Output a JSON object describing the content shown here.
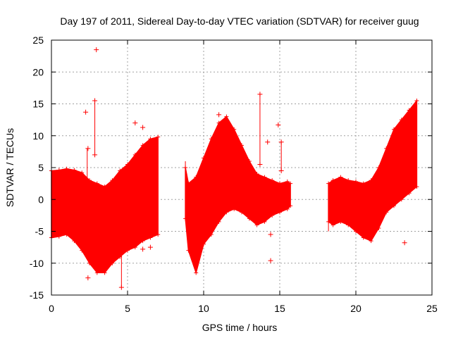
{
  "chart_data": {
    "type": "scatter",
    "title": "Day 197 of 2011, Sidereal Day-to-day VTEC variation (SDTVAR) for receiver guug",
    "xlabel": "GPS time / hours",
    "ylabel": "SDTVAR / TECUs",
    "xlim": [
      0,
      25
    ],
    "ylim": [
      -15,
      25
    ],
    "x_ticks": [
      0,
      5,
      10,
      15,
      20,
      25
    ],
    "x_tick_labels": [
      "0",
      "5",
      "10",
      "15",
      "20",
      "25"
    ],
    "y_ticks": [
      -15,
      -10,
      -5,
      0,
      5,
      10,
      15,
      20,
      25
    ],
    "y_tick_labels": [
      "-15",
      "-10",
      "-5",
      "0",
      "5",
      "10",
      "15",
      "20",
      "25"
    ],
    "grid": true,
    "series": [
      {
        "name": "SDTVAR",
        "color": "#ff0000",
        "marker": "plus",
        "segments": [
          {
            "x": [
              0.0,
              0.5,
              1.0,
              1.5,
              2.0,
              2.5,
              3.0,
              3.5,
              4.0,
              4.5,
              5.0,
              5.5,
              6.0,
              6.5,
              7.0
            ],
            "upper": [
              4.5,
              4.6,
              4.8,
              4.6,
              4.2,
              3.0,
              2.5,
              2.0,
              3.0,
              4.5,
              5.5,
              7.0,
              8.5,
              9.5,
              9.8
            ],
            "lower": [
              -6.0,
              -5.8,
              -5.5,
              -6.5,
              -8.0,
              -10.0,
              -11.5,
              -11.5,
              -10.0,
              -9.0,
              -8.0,
              -7.5,
              -6.5,
              -6.0,
              -5.5
            ]
          },
          {
            "x": [
              8.8,
              9.0,
              9.5,
              10.0,
              10.5,
              11.0,
              11.5,
              12.0,
              12.5,
              13.0,
              13.5,
              14.0,
              14.5,
              15.0,
              15.5,
              15.7
            ],
            "upper": [
              5.0,
              2.5,
              3.5,
              6.5,
              9.5,
              12.0,
              13.0,
              11.0,
              8.5,
              6.0,
              4.0,
              3.5,
              3.0,
              2.5,
              2.8,
              2.5
            ],
            "lower": [
              -3.0,
              -8.0,
              -11.5,
              -7.0,
              -5.5,
              -3.5,
              -2.0,
              -1.5,
              -2.0,
              -3.0,
              -4.0,
              -3.5,
              -2.5,
              -2.0,
              -1.5,
              -1.0
            ]
          },
          {
            "x": [
              18.2,
              18.5,
              19.0,
              19.5,
              20.0,
              20.5,
              21.0,
              21.5,
              22.0,
              22.5,
              23.0,
              23.5,
              24.0
            ],
            "upper": [
              2.5,
              3.0,
              3.5,
              3.0,
              2.8,
              2.5,
              3.0,
              5.0,
              8.0,
              11.0,
              12.5,
              14.0,
              15.5
            ],
            "lower": [
              -3.5,
              -4.0,
              -3.5,
              -4.0,
              -5.0,
              -6.0,
              -6.5,
              -4.5,
              -2.0,
              -1.0,
              0.0,
              1.0,
              2.0
            ]
          }
        ],
        "outliers": [
          {
            "x": 2.95,
            "y": 23.5
          },
          {
            "x": 2.25,
            "y": 13.7
          },
          {
            "x": 2.85,
            "y": 15.5
          },
          {
            "x": 2.85,
            "y": 7.0
          },
          {
            "x": 2.4,
            "y": 8.0
          },
          {
            "x": 2.4,
            "y": -12.3
          },
          {
            "x": 4.6,
            "y": -13.8
          },
          {
            "x": 5.5,
            "y": 12.0
          },
          {
            "x": 6.0,
            "y": 11.3
          },
          {
            "x": 6.0,
            "y": -7.8
          },
          {
            "x": 6.5,
            "y": -7.5
          },
          {
            "x": 11.0,
            "y": 13.3
          },
          {
            "x": 13.7,
            "y": 16.5
          },
          {
            "x": 13.7,
            "y": 5.5
          },
          {
            "x": 14.2,
            "y": 9.0
          },
          {
            "x": 14.4,
            "y": -9.6
          },
          {
            "x": 14.4,
            "y": -5.5
          },
          {
            "x": 14.9,
            "y": 11.7
          },
          {
            "x": 15.1,
            "y": 9.0
          },
          {
            "x": 15.1,
            "y": 4.5
          },
          {
            "x": 23.2,
            "y": -6.8
          }
        ],
        "vertical_spikes": [
          {
            "x": 2.85,
            "y0": 7.0,
            "y1": 15.5
          },
          {
            "x": 2.35,
            "y0": -1.0,
            "y1": 8.0
          },
          {
            "x": 4.6,
            "y0": -13.8,
            "y1": -8.0
          },
          {
            "x": 13.7,
            "y0": 5.5,
            "y1": 16.5
          },
          {
            "x": 15.1,
            "y0": 4.5,
            "y1": 9.0
          },
          {
            "x": 8.8,
            "y0": 1.0,
            "y1": 6.0
          },
          {
            "x": 18.2,
            "y0": -5.0,
            "y1": 0.5
          }
        ]
      }
    ]
  }
}
